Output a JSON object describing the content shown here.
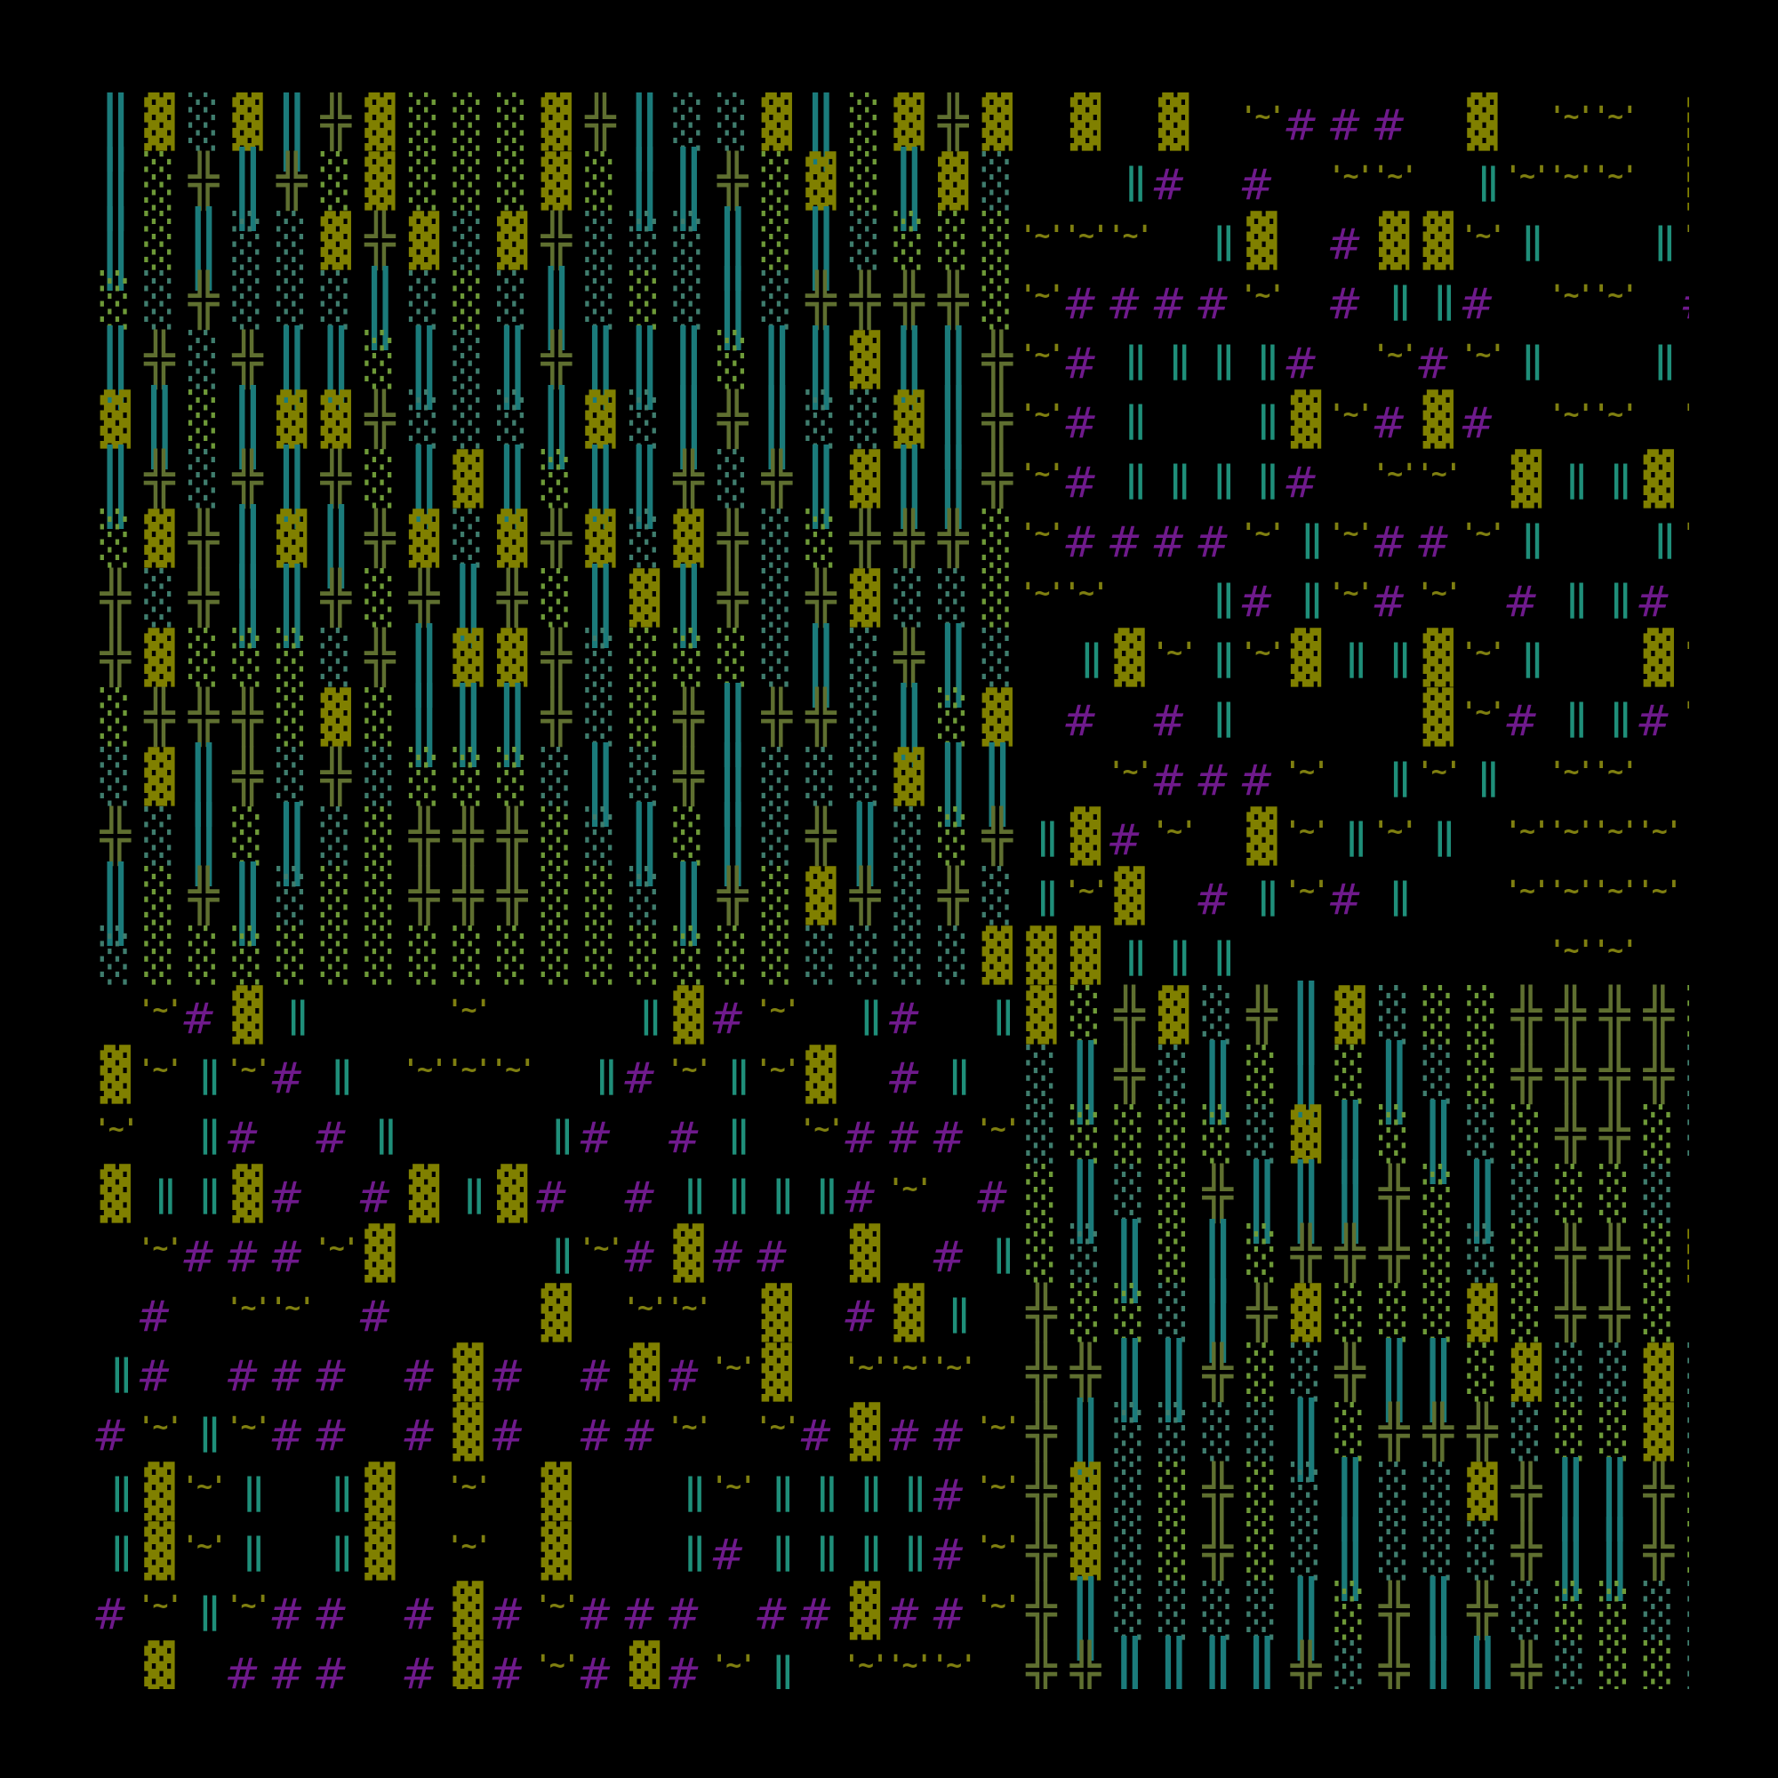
{
  "legend": {
    "B": {
      "glyph": "▓",
      "name": "tile-block",
      "color": "#808000"
    },
    "D": {
      "glyph": "░",
      "name": "tile-dots-green",
      "color": "#6e9a38"
    },
    "d": {
      "glyph": "░",
      "name": "tile-dots-teal",
      "color": "#3f7d6e"
    },
    "P": {
      "glyph": "╬",
      "name": "tile-cross",
      "color": "#5f6f30"
    },
    "W": {
      "glyph": "║",
      "name": "tile-wide-bars",
      "color": "#1b7b7b"
    },
    "H": {
      "glyph": "||",
      "name": "tile-double-bar",
      "color": "#1f8f7a"
    },
    "#": {
      "glyph": "#",
      "name": "tile-hash",
      "color": "#6f1a8c"
    },
    ".": {
      "glyph": "..",
      "name": "tile-dots",
      "color": "#6a1d86"
    },
    "T": {
      "glyph": "'~'",
      "name": "tile-tilde",
      "color": "#7f7f10"
    },
    "_": {
      "glyph": " ",
      "name": "tile-empty",
      "color": "#000000"
    }
  },
  "grid": [
    "WBdBWPBDDDBPWddBWDBPB.B.B.T###.B.TT.B",
    "WDPWPDBDDDBDWWPDBDWBd..H#.#.TT.HTTT.B",
    "WDWddBPBdBPdddWDWdDDDTTT.HB.#BBTH..HT",
    "DdPdddWdDdWdDdWdPPPPDT####T.#HH#.TT.#",
    "WPdPWWDWdWPWWWDWWBWWPT#HHHH#.T#TH..H.",
    "BWDWBBPdddWBdWPWddBWPT#H..HBT#B#.TT.T",
    "WPdPWPDWBWDWWPdPWBWWPT#HHHH#.TT.BHHB.",
    "DBPWBWPBdBPBdBPdDPPPDT####THT##TH..HT",
    "PdPWWPDPWPDWBWPdPBddDTT..H#HT#T.#HH#.",
    "PBDDDdPWBBPdDDDdWdPWd.HBTHTBHHBTH..BT",
    "DPPPDBDWWWPdDPWPPdWDB.#.#H....BT#HH#T",
    "dBWPdPdDDDdWdPWdddBWW..T###T.HTH.TT._",
    "PdWDWdDPPPDdWDWdPWdDPHB#T.BTHTH.TTTT.",
    "WDPWdDDPPPDDdWPDBPdPdHTB.#HT#H..TTTT.",
    "dDDDDDDDDDDDDDDDddddBBBHHH.......TT..",
    ".T#BH...T...HB#T.H#.HBDPBdPWBdDDPPPPD",
    "BTHT#H.TTT.H#THTB.#H.dWPdWDWDWdDPPPPd",
    "T.H#.#H...H#.#H.T###TdDDDDdBWDWdDPPDd",
    "BHHB#.#BHB#.#HHHH#T.#DWdDPWWWPDWdDDdW",
    ".T###TB...HT#B##.B.#HDdWDWDPPPDdDPPDB",
    ".#.TT.#...B.TT.B.#BH.PDDdWPBDDDBDPPDW",
    "H#.###.#B#.#B#TB.TTT.PPWWPDdPWWDBddBd",
    "#THT##.#B#.##T.T#B##TPWddddWDPPPdDDBd",
    "HBTH.HB.T.B..HTHHHH#TPBdDPDdWddBPWWPD",
    "HBTH.HB.T.B..H#HHHH#TPBdDPDdWdddPWWPD",
    "#THT##.#B#T###.##B##TPWddddWDPWPdDDdd",
    "_B_###_#B#T#B#TH_TTT_PPWWWWPdPWWPdDDd"
  ]
}
